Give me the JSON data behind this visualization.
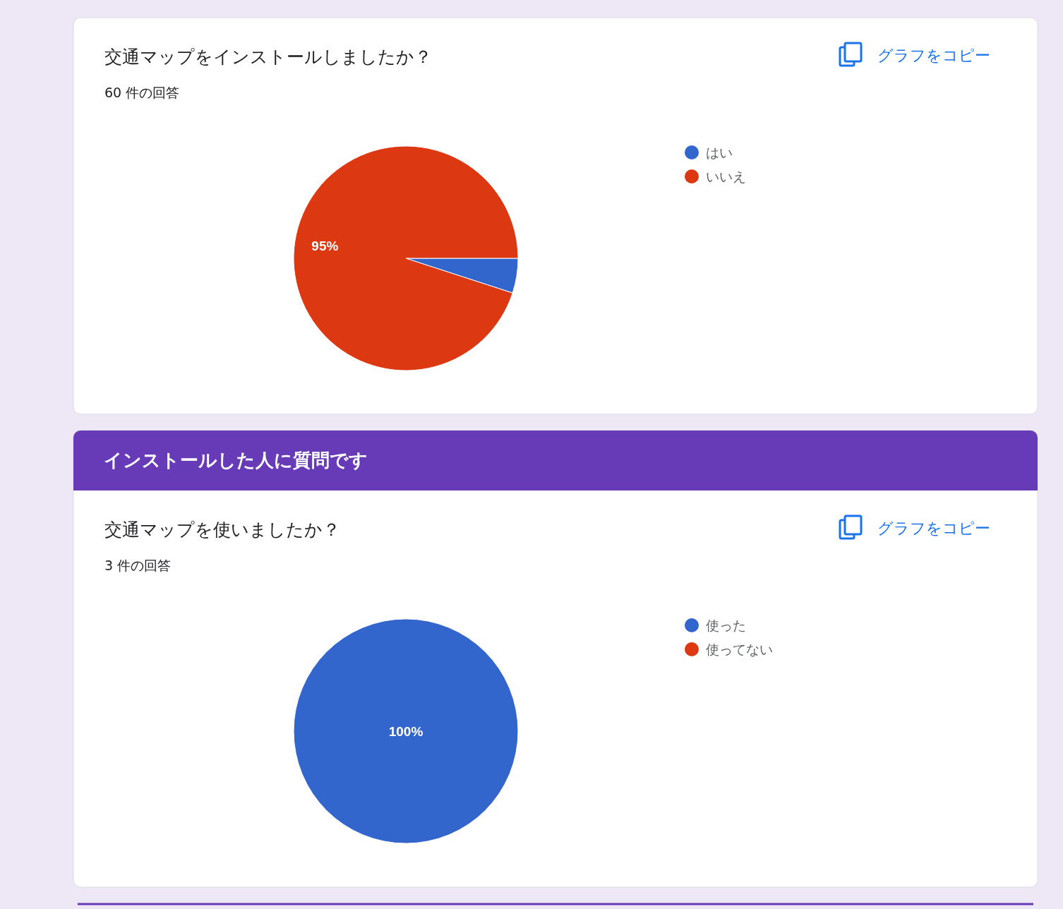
{
  "chart_data": [
    {
      "type": "pie",
      "title": "交通マップをインストールしましたか？",
      "subtitle": "60 件の回答",
      "categories": [
        "はい",
        "いいえ"
      ],
      "values": [
        5,
        95
      ],
      "colors": [
        "#3366cc",
        "#dc3912"
      ],
      "value_labels": [
        null,
        "95%"
      ],
      "legend": "right",
      "annotations": [
        "グラフをコピー"
      ]
    },
    {
      "type": "pie",
      "title": "交通マップを使いましたか？",
      "subtitle": "3 件の回答",
      "categories": [
        "使った",
        "使ってない"
      ],
      "values": [
        100,
        0
      ],
      "colors": [
        "#3366cc",
        "#dc3912"
      ],
      "value_labels": [
        "100%",
        null
      ],
      "legend": "right",
      "annotations": [
        "インストールした人に質問です",
        "グラフをコピー"
      ]
    }
  ]
}
